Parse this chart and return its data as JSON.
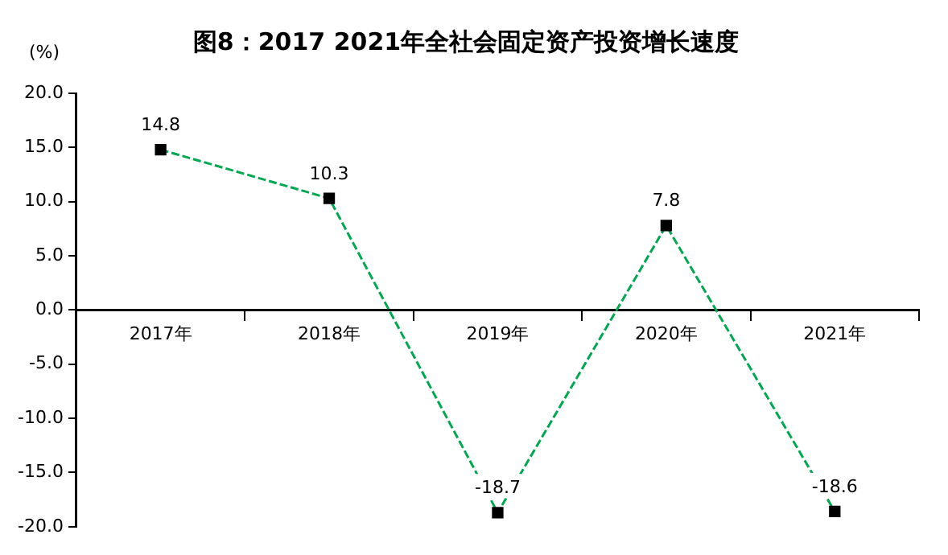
{
  "chart_data": {
    "type": "line",
    "title": "图8：2017 2021年全社会固定资产投资增长速度",
    "ylabel": "(%)",
    "categories": [
      "2017年",
      "2018年",
      "2019年",
      "2020年",
      "2021年"
    ],
    "series": [
      {
        "color": "#00a84f",
        "values": [
          14.8,
          10.3,
          -18.7,
          7.8,
          -18.6
        ]
      }
    ],
    "ylim": [
      -20,
      20
    ],
    "yticks": [
      {
        "value": -20,
        "label": "-20.0"
      },
      {
        "value": -15,
        "label": "-15.0"
      },
      {
        "value": -10,
        "label": "-10.0"
      },
      {
        "value": -5,
        "label": "-5.0"
      },
      {
        "value": 0,
        "label": "0.0"
      },
      {
        "value": 5,
        "label": "5.0"
      },
      {
        "value": 10,
        "label": "10.0"
      },
      {
        "value": 15,
        "label": "15.0"
      },
      {
        "value": 20,
        "label": "20.0"
      }
    ],
    "marker": "square",
    "line_style": "dashed",
    "data_labels": true,
    "grid": false,
    "legend": false
  }
}
